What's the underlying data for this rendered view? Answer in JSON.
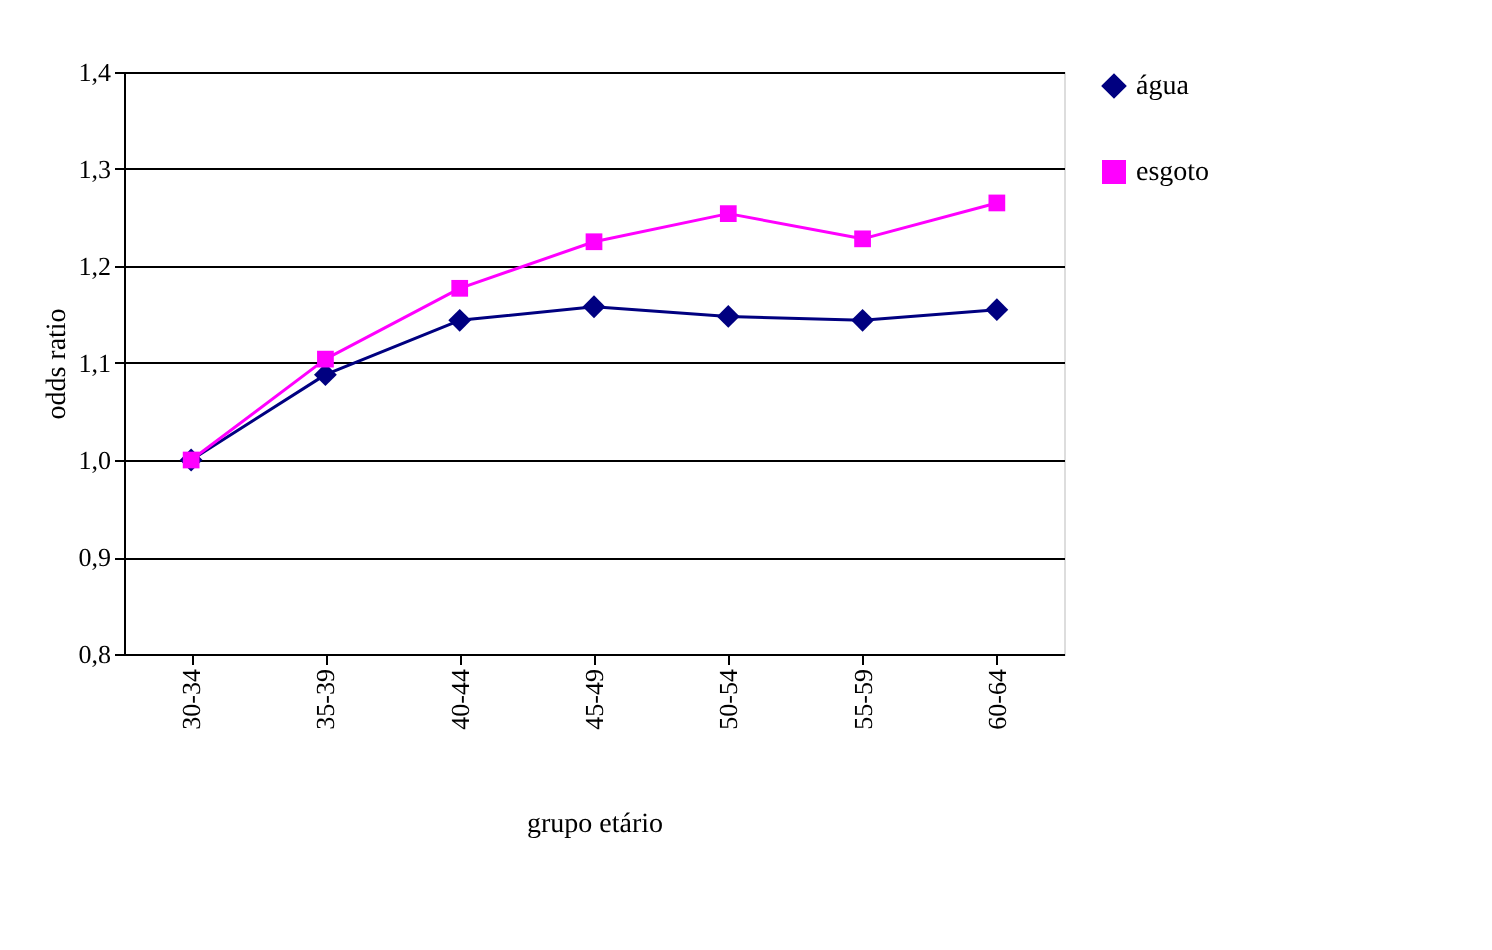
{
  "chart_data": {
    "type": "line",
    "xlabel": "grupo etário",
    "ylabel": "odds ratio",
    "categories": [
      "30-34",
      "35-39",
      "40-44",
      "45-49",
      "50-54",
      "55-59",
      "60-64"
    ],
    "series": [
      {
        "name": "água",
        "color": "#000080",
        "marker": "diamond",
        "values": [
          1.0,
          1.088,
          1.144,
          1.158,
          1.148,
          1.144,
          1.155
        ]
      },
      {
        "name": "esgoto",
        "color": "#ff00ff",
        "marker": "square",
        "values": [
          1.0,
          1.104,
          1.177,
          1.225,
          1.254,
          1.228,
          1.265
        ]
      }
    ],
    "ylim": [
      0.8,
      1.4
    ],
    "yticks": [
      {
        "value": 0.8,
        "label": "0,8"
      },
      {
        "value": 0.9,
        "label": "0,9"
      },
      {
        "value": 1.0,
        "label": "1,0"
      },
      {
        "value": 1.1,
        "label": "1,1"
      },
      {
        "value": 1.2,
        "label": "1,2"
      },
      {
        "value": 1.3,
        "label": "1,3"
      },
      {
        "value": 1.4,
        "label": "1,4"
      }
    ],
    "grid": "y",
    "legend": "right",
    "line_style": "solid"
  }
}
